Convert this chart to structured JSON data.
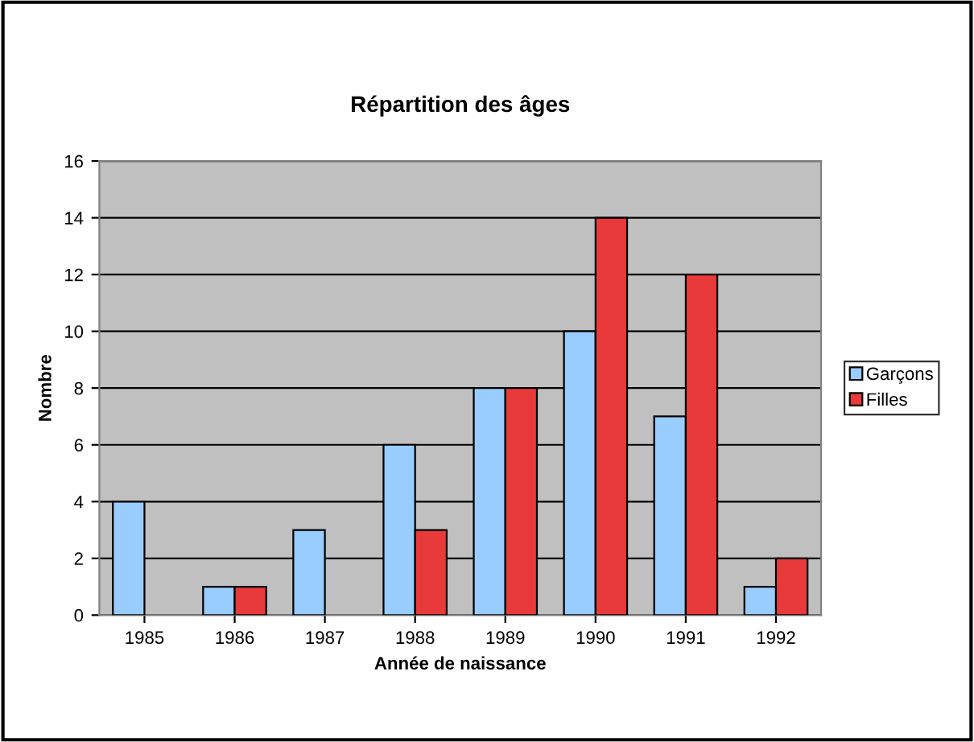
{
  "chart_data": {
    "type": "bar",
    "title": "Répartition des âges",
    "xlabel": "Année de naissance",
    "ylabel": "Nombre",
    "categories": [
      "1985",
      "1986",
      "1987",
      "1988",
      "1989",
      "1990",
      "1991",
      "1992"
    ],
    "series": [
      {
        "name": "Garçons",
        "color": "#99ccff",
        "values": [
          4,
          1,
          3,
          6,
          8,
          10,
          7,
          1
        ]
      },
      {
        "name": "Filles",
        "color": "#e83a3a",
        "values": [
          null,
          1,
          null,
          3,
          8,
          14,
          12,
          2
        ]
      }
    ],
    "ylim": [
      0,
      16
    ],
    "yticks": [
      0,
      2,
      4,
      6,
      8,
      10,
      12,
      14,
      16
    ],
    "grid": "y",
    "legend": "right"
  }
}
